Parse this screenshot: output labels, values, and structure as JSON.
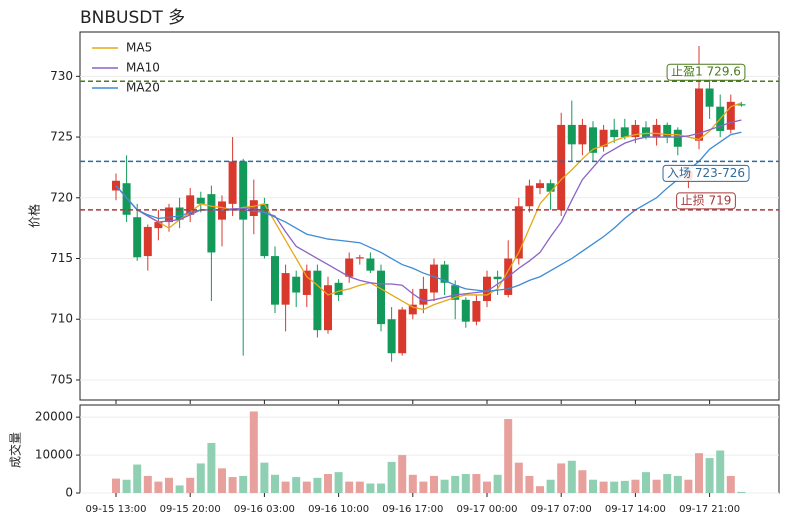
{
  "chart_data": [
    {
      "type": "candlestick",
      "title": "BNBUSDT  多",
      "ylabel": "价格",
      "up_color": "#d9382c",
      "down_color": "#139a5a",
      "open": [
        720.6,
        721.2,
        718.4,
        715.2,
        717.5,
        718.0,
        719.2,
        718.6,
        720.0,
        720.3,
        718.2,
        719.5,
        723.0,
        718.5,
        719.5,
        715.2,
        711.2,
        713.5,
        712.0,
        714.0,
        709.1,
        713.0,
        713.5,
        715.0,
        715.0,
        714.0,
        710.0,
        707.2,
        710.4,
        711.2,
        712.2,
        714.5,
        712.8,
        711.6,
        709.8,
        711.5,
        713.5,
        712.0,
        715.0,
        719.3,
        720.8,
        721.2,
        719.0,
        726.0,
        724.4,
        725.8,
        724.2,
        725.6,
        725.8,
        725.0,
        725.8,
        725.0,
        726.0,
        725.6,
        721.5,
        724.7,
        729.0,
        727.5,
        725.6,
        727.7
      ],
      "high": [
        722.0,
        723.5,
        719.5,
        717.8,
        719.0,
        719.5,
        720.0,
        720.8,
        720.5,
        721.0,
        720.2,
        725.0,
        723.2,
        721.5,
        720.0,
        716.0,
        714.5,
        714.0,
        714.5,
        714.5,
        713.5,
        713.3,
        715.5,
        715.3,
        715.5,
        714.5,
        711.0,
        711.0,
        712.5,
        713.5,
        715.0,
        714.8,
        713.2,
        711.8,
        712.0,
        714.0,
        714.0,
        716.5,
        720.0,
        721.5,
        721.5,
        721.5,
        727.0,
        728.0,
        726.5,
        726.3,
        726.0,
        726.5,
        726.5,
        726.4,
        726.3,
        726.5,
        726.2,
        725.8,
        722.5,
        732.5,
        730.0,
        728.5,
        728.5,
        727.9
      ],
      "low": [
        719.8,
        718.0,
        714.8,
        714.0,
        716.5,
        717.2,
        717.5,
        718.0,
        718.8,
        711.5,
        716.0,
        718.5,
        707.0,
        717.0,
        715.0,
        710.5,
        709.0,
        711.0,
        711.0,
        708.5,
        708.8,
        711.5,
        713.0,
        714.5,
        713.8,
        709.0,
        706.5,
        707.0,
        710.0,
        710.5,
        711.5,
        712.0,
        710.0,
        709.3,
        709.5,
        711.0,
        712.0,
        711.8,
        714.5,
        718.8,
        720.3,
        719.0,
        718.5,
        723.0,
        723.5,
        723.0,
        723.8,
        724.5,
        724.8,
        724.5,
        724.8,
        724.3,
        724.5,
        723.5,
        720.8,
        724.0,
        726.5,
        725.0,
        725.3,
        727.5
      ],
      "close": [
        721.4,
        718.6,
        715.1,
        717.6,
        718.0,
        719.2,
        718.2,
        720.2,
        719.5,
        715.5,
        719.7,
        723.0,
        718.2,
        719.8,
        715.2,
        711.2,
        713.8,
        712.2,
        714.0,
        709.1,
        712.8,
        712.0,
        715.0,
        715.1,
        714.0,
        709.6,
        707.2,
        710.8,
        711.2,
        712.5,
        714.5,
        713.0,
        711.6,
        709.8,
        711.5,
        713.5,
        713.3,
        715.0,
        719.3,
        721.0,
        721.2,
        720.5,
        726.0,
        724.4,
        726.0,
        723.7,
        725.6,
        725.0,
        725.0,
        726.0,
        725.0,
        726.0,
        725.0,
        724.2,
        722.2,
        729.0,
        727.5,
        725.5,
        727.9,
        727.6
      ],
      "series": [
        {
          "name": "MA5",
          "color": "#e6a817",
          "values": [
            721.0,
            720.0,
            719.0,
            718.5,
            718.0,
            717.5,
            718.2,
            718.8,
            719.5,
            719.3,
            719.2,
            719.0,
            719.2,
            719.3,
            719.5,
            718.0,
            716.5,
            715.0,
            713.5,
            712.8,
            712.0,
            712.3,
            712.5,
            712.8,
            713.0,
            712.5,
            712.0,
            711.5,
            711.0,
            710.8,
            711.2,
            711.5,
            711.8,
            712.0,
            712.0,
            712.0,
            712.5,
            714.0,
            715.5,
            717.5,
            719.5,
            720.5,
            721.5,
            722.3,
            723.2,
            724.0,
            724.3,
            724.7,
            725.0,
            725.2,
            725.3,
            725.3,
            725.2,
            725.2,
            725.0,
            724.8,
            725.5,
            726.5,
            727.5,
            727.8
          ]
        },
        {
          "name": "MA10",
          "color": "#8a63c8",
          "values": [
            721.0,
            720.0,
            719.0,
            718.5,
            718.0,
            718.1,
            718.2,
            718.6,
            719.0,
            719.0,
            719.0,
            719.1,
            719.1,
            719.2,
            718.8,
            718.5,
            717.2,
            716.0,
            715.5,
            715.0,
            714.5,
            714.0,
            713.5,
            713.2,
            713.0,
            712.9,
            712.9,
            712.8,
            712.1,
            711.5,
            711.6,
            711.8,
            712.0,
            712.1,
            712.2,
            712.3,
            712.9,
            713.5,
            714.2,
            714.8,
            715.5,
            716.8,
            718.0,
            719.8,
            721.5,
            722.5,
            723.5,
            724.0,
            724.5,
            724.8,
            725.0,
            725.0,
            725.0,
            725.0,
            725.1,
            725.3,
            725.6,
            725.9,
            726.2,
            726.4
          ]
        },
        {
          "name": "MA20",
          "color": "#3d8bd4",
          "values": [
            721.0,
            720.0,
            719.0,
            718.6,
            718.3,
            718.4,
            718.5,
            718.8,
            719.0,
            719.0,
            719.0,
            719.0,
            719.0,
            718.9,
            718.8,
            718.4,
            718.0,
            717.5,
            717.0,
            716.8,
            716.6,
            716.5,
            716.4,
            716.3,
            715.9,
            715.5,
            715.0,
            714.5,
            714.2,
            713.8,
            713.5,
            713.2,
            712.8,
            712.5,
            712.4,
            712.3,
            712.4,
            712.5,
            712.8,
            713.2,
            713.5,
            714.0,
            714.5,
            715.0,
            715.6,
            716.2,
            716.8,
            717.5,
            718.3,
            719.0,
            719.5,
            720.0,
            720.8,
            721.5,
            722.3,
            723.0,
            724.0,
            724.6,
            725.2,
            725.4
          ]
        }
      ],
      "levels": [
        {
          "label": "止盈1 729.6",
          "value": 729.6,
          "color": "#4a7a1e"
        },
        {
          "label": "入场 723-726",
          "value": 723,
          "color": "#2f6a9a"
        },
        {
          "label": "止损 719",
          "value": 719,
          "color": "#a83a3a"
        }
      ],
      "ylim": [
        703.35,
        733.65
      ],
      "yticks": [
        705,
        710,
        715,
        720,
        725,
        730
      ],
      "grid": true,
      "legend": "upper left"
    },
    {
      "type": "bar",
      "ylabel": "成交量",
      "categories": [
        "09-15 13:00",
        null,
        null,
        null,
        null,
        null,
        null,
        "09-15 20:00",
        null,
        null,
        null,
        null,
        null,
        null,
        "09-16 03:00",
        null,
        null,
        null,
        null,
        null,
        null,
        "09-16 10:00",
        null,
        null,
        null,
        null,
        null,
        null,
        "09-16 17:00",
        null,
        null,
        null,
        null,
        null,
        null,
        "09-17 00:00",
        null,
        null,
        null,
        null,
        null,
        null,
        "09-17 07:00",
        null,
        null,
        null,
        null,
        null,
        null,
        "09-17 14:00",
        null,
        null,
        null,
        null,
        null,
        null,
        "09-17 21:00",
        null,
        null,
        null
      ],
      "values": [
        3800,
        3500,
        7500,
        4500,
        3000,
        4000,
        2000,
        4000,
        7800,
        13200,
        6500,
        4200,
        4500,
        21500,
        8000,
        4800,
        3000,
        4200,
        3000,
        4000,
        5000,
        5500,
        3000,
        3000,
        2500,
        2500,
        8200,
        10000,
        4800,
        3000,
        4500,
        3500,
        4500,
        5000,
        5000,
        3000,
        4800,
        19500,
        8000,
        4500,
        1800,
        3500,
        7800,
        8500,
        6000,
        3500,
        3000,
        3000,
        3200,
        3500,
        5500,
        3500,
        5000,
        4500,
        3500,
        10500,
        9200,
        11200,
        4500,
        300
      ],
      "up_color": "#e8a09c",
      "down_color": "#8fd0b2",
      "ylim": [
        0,
        23200
      ],
      "yticks": [
        0,
        10000,
        20000
      ],
      "grid": true
    }
  ]
}
